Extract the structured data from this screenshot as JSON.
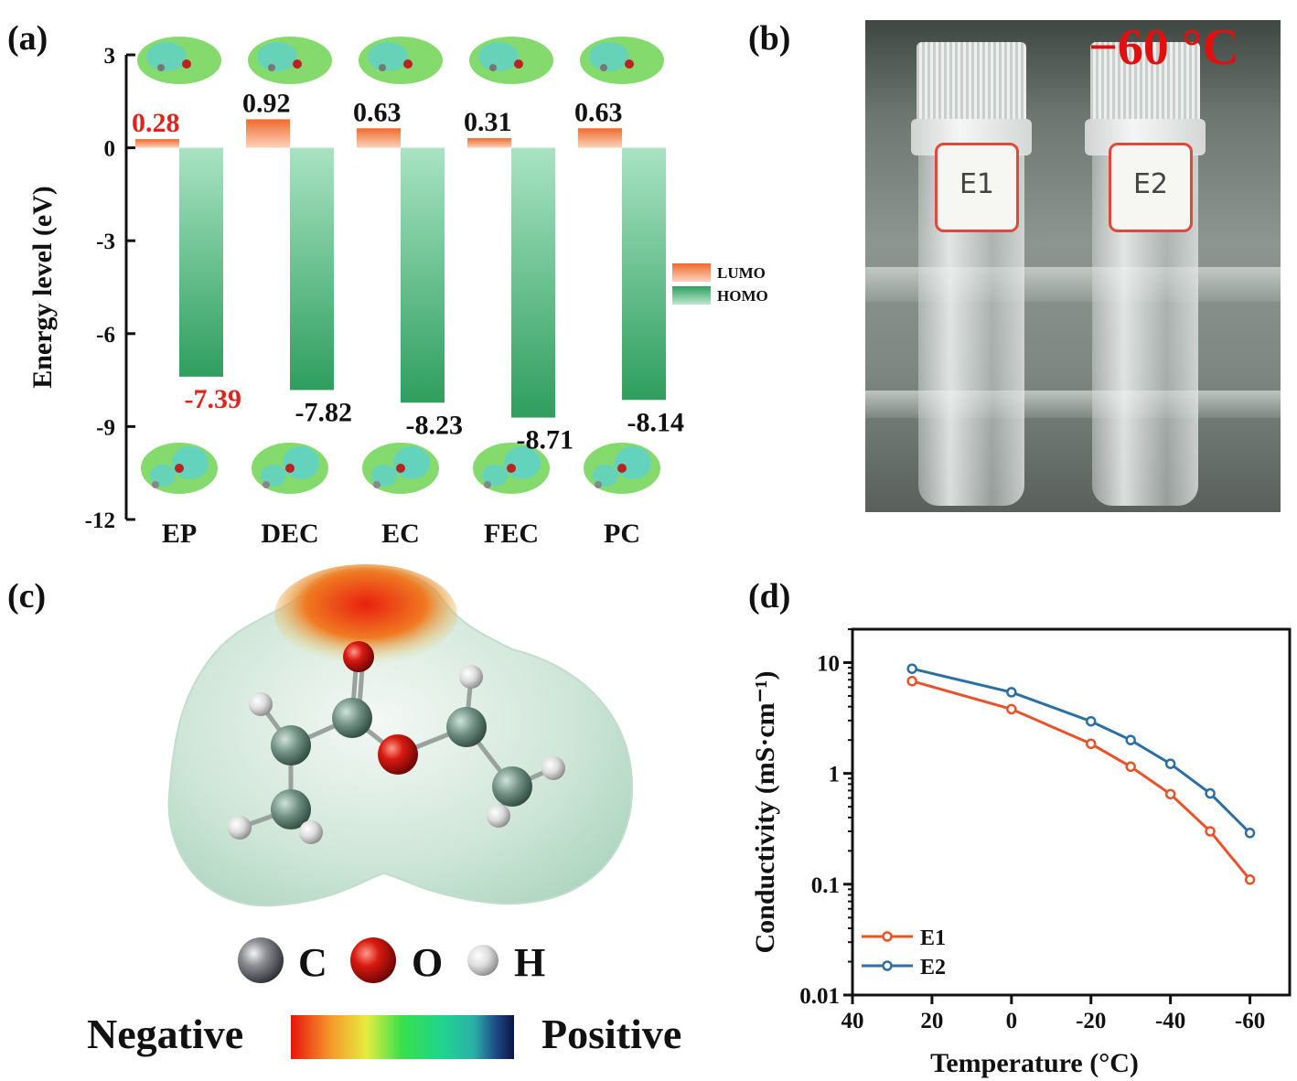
{
  "panels": {
    "a": "(a)",
    "b": "(b)",
    "c": "(c)",
    "d": "(d)"
  },
  "chart_data": [
    {
      "type": "bar",
      "panel": "a",
      "ylabel": "Energy level (eV)",
      "ylim": [
        -12,
        3
      ],
      "yticks": [
        "3",
        "0",
        "-3",
        "-6",
        "-9",
        "-12"
      ],
      "categories": [
        "EP",
        "DEC",
        "EC",
        "FEC",
        "PC"
      ],
      "series": [
        {
          "name": "LUMO",
          "values": [
            0.28,
            0.92,
            0.63,
            0.31,
            0.63
          ],
          "labels": [
            "0.28",
            "0.92",
            "0.63",
            "0.31",
            "0.63"
          ],
          "color": "#f07a3c"
        },
        {
          "name": "HOMO",
          "values": [
            -7.39,
            -7.82,
            -8.23,
            -8.71,
            -8.14
          ],
          "labels": [
            "-7.39",
            "-7.82",
            "-8.23",
            "-8.71",
            "-8.14"
          ],
          "color": "#2e9e5e"
        }
      ],
      "highlight_color": "#e0241c",
      "highlight_category": "EP",
      "legend_position": "right"
    },
    {
      "type": "line",
      "panel": "d",
      "xlabel": "Temperature (°C)",
      "ylabel": "Conductivity (mS·cm⁻¹)",
      "xlim": [
        40,
        -70
      ],
      "xticks": [
        "40",
        "20",
        "0",
        "-20",
        "-40",
        "-60"
      ],
      "yscale": "log",
      "ylim": [
        0.01,
        20
      ],
      "yticks": [
        "10",
        "1",
        "0.1",
        "0.01"
      ],
      "series": [
        {
          "name": "E1",
          "color": "#e8532a",
          "x": [
            25,
            0,
            -20,
            -30,
            -40,
            -50,
            -60
          ],
          "y": [
            6.8,
            3.8,
            1.85,
            1.15,
            0.65,
            0.3,
            0.11
          ]
        },
        {
          "name": "E2",
          "color": "#2b6fa3",
          "x": [
            25,
            0,
            -20,
            -30,
            -40,
            -50,
            -60
          ],
          "y": [
            8.8,
            5.4,
            2.95,
            2.0,
            1.22,
            0.66,
            0.29
          ]
        }
      ],
      "legend_position": "bottom-left"
    }
  ],
  "photo": {
    "temperature": "−60 °C",
    "vial_labels": [
      "E1",
      "E2"
    ]
  },
  "esp": {
    "atoms": [
      {
        "symbol": "C",
        "color": "#6e7077"
      },
      {
        "symbol": "O",
        "color": "#d81a10"
      },
      {
        "symbol": "H",
        "color": "#dcdcdc"
      }
    ],
    "scale_left": "Negative",
    "scale_right": "Positive"
  }
}
